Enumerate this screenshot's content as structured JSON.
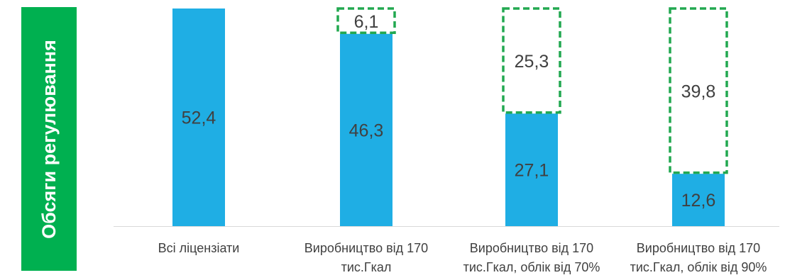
{
  "side_label": "Обсяги регулювання",
  "colors": {
    "bar": "#1faee4",
    "dashed": "#22a850",
    "side_bg": "#00b050",
    "text": "#404040",
    "axis": "#d9d9d9"
  },
  "chart_data": {
    "type": "bar",
    "stacked": true,
    "categories": [
      [
        "Всі ліцензіати"
      ],
      [
        "Виробництво від 170",
        "тис.Гкал"
      ],
      [
        "Виробництво від 170",
        "тис.Гкал, облік від 70%"
      ],
      [
        "Виробництво від 170",
        "тис.Гкал, облік від 90%"
      ]
    ],
    "series": [
      {
        "values": [
          52.4,
          46.3,
          27.1,
          12.6
        ],
        "labels": [
          "52,4",
          "46,3",
          "27,1",
          "12,6"
        ],
        "style": "solid"
      },
      {
        "values": [
          null,
          6.1,
          25.3,
          39.8
        ],
        "labels": [
          "",
          "6,1",
          "25,3",
          "39,8"
        ],
        "style": "dashed-outline"
      }
    ],
    "ylim": [
      0,
      52.4
    ],
    "grid": false
  }
}
